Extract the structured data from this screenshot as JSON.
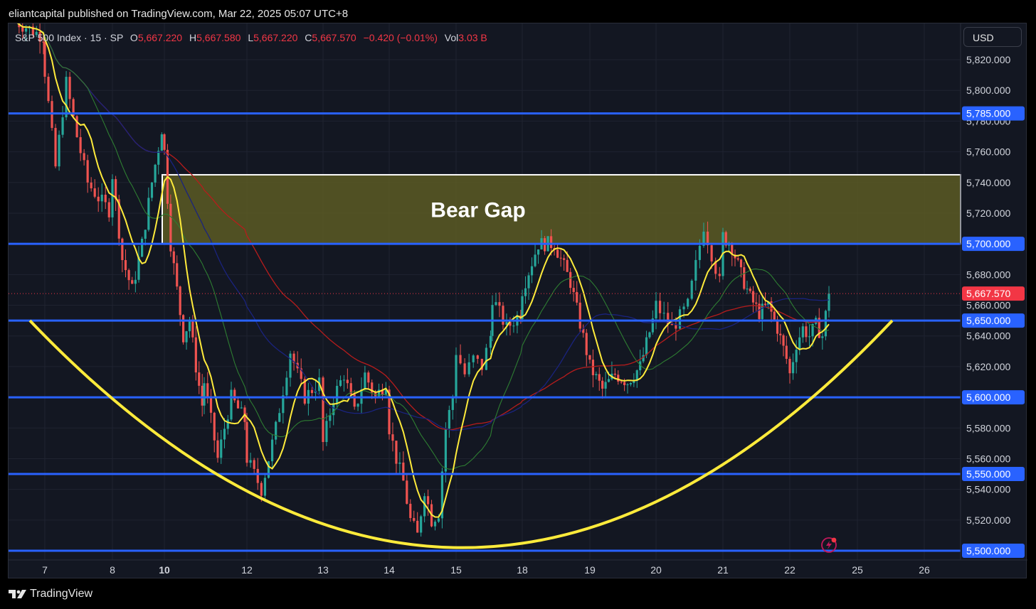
{
  "header": {
    "publisher": "eliantcapital published on TradingView.com, Mar 22, 2025 05:07 UTC+8"
  },
  "legend": {
    "symbol": "S&P 500 Index · 15 · SP",
    "open_label": "O",
    "open": "5,667.220",
    "high_label": "H",
    "high": "5,667.580",
    "low_label": "L",
    "low": "5,667.220",
    "close_label": "C",
    "close": "5,667.570",
    "change": "−0.420 (−0.01%)",
    "vol_label": "Vol",
    "vol": "3.03 B"
  },
  "currency_button": "USD",
  "footer": {
    "brand": "TradingView"
  },
  "colors": {
    "background": "#131722",
    "grid": "#1f2330",
    "up_candle": "#26a69a",
    "down_candle": "#ef5350",
    "level_line": "#2962ff",
    "level_label_bg": "#2962ff",
    "gap_fill": "#5c5a23",
    "gap_border": "#ffffff",
    "ma_fast": "#ffeb3b",
    "ma_mid": "#2e7d32",
    "ma_blue": "#1a237e",
    "ma_red": "#b71c1c",
    "price_marker": "#f23645",
    "curve": "#ffeb3b"
  },
  "chart_data": {
    "type": "candlestick",
    "title": "S&P 500 Index · 15 · SP",
    "currency": "USD",
    "ylim": [
      5500,
      5835
    ],
    "y_ticks": [
      5520,
      5540,
      5560,
      5580,
      5600,
      5620,
      5640,
      5660,
      5680,
      5700,
      5720,
      5740,
      5760,
      5780,
      5800,
      5820
    ],
    "x_ticks": [
      "7",
      "8",
      "10",
      "12",
      "13",
      "14",
      "15",
      "18",
      "19",
      "20",
      "21",
      "22",
      "25",
      "26"
    ],
    "last_price": 5667.57,
    "horizontal_levels": [
      5785,
      5700,
      5650,
      5600,
      5550,
      5500
    ],
    "bear_gap": {
      "label": "Bear Gap",
      "low": 5700,
      "high": 5745
    },
    "rounding_bottom": {
      "start_price": 5650,
      "bottom_price": 5502,
      "end_price": 5650,
      "start_date": "Mar 6",
      "bottom_date": "Mar 14",
      "end_date": "Mar 25"
    },
    "price_path": [
      [
        "Mar 6",
        5845
      ],
      [
        "Mar 6",
        5835
      ],
      [
        "Mar 7",
        5812
      ],
      [
        "Mar 7",
        5750
      ],
      [
        "Mar 7",
        5805
      ],
      [
        "Mar 7",
        5770
      ],
      [
        "Mar 7",
        5740
      ],
      [
        "Mar 7",
        5730
      ],
      [
        "Mar 7",
        5722
      ],
      [
        "Mar 8",
        5745
      ],
      [
        "Mar 8",
        5690
      ],
      [
        "Mar 8",
        5670
      ],
      [
        "Mar 8",
        5700
      ],
      [
        "Mar 8",
        5740
      ],
      [
        "Mar 8",
        5775
      ],
      [
        "Mar 10",
        5760
      ],
      [
        "Mar 10",
        5700
      ],
      [
        "Mar 10",
        5670
      ],
      [
        "Mar 10",
        5640
      ],
      [
        "Mar 10",
        5650
      ],
      [
        "Mar 10",
        5620
      ],
      [
        "Mar 10",
        5595
      ],
      [
        "Mar 11",
        5610
      ],
      [
        "Mar 11",
        5560
      ],
      [
        "Mar 11",
        5600
      ],
      [
        "Mar 11",
        5585
      ],
      [
        "Mar 12",
        5560
      ],
      [
        "Mar 12",
        5540
      ],
      [
        "Mar 12",
        5580
      ],
      [
        "Mar 12",
        5630
      ],
      [
        "Mar 12",
        5600
      ],
      [
        "Mar 12",
        5610
      ],
      [
        "Mar 13",
        5570
      ],
      [
        "Mar 13",
        5600
      ],
      [
        "Mar 13",
        5615
      ],
      [
        "Mar 13",
        5590
      ],
      [
        "Mar 13",
        5615
      ],
      [
        "Mar 13",
        5600
      ],
      [
        "Mar 13",
        5610
      ],
      [
        "Mar 14",
        5580
      ],
      [
        "Mar 14",
        5560
      ],
      [
        "Mar 14",
        5545
      ],
      [
        "Mar 14",
        5520
      ],
      [
        "Mar 14",
        5510
      ],
      [
        "Mar 14",
        5540
      ],
      [
        "Mar 14",
        5520
      ],
      [
        "Mar 14",
        5525
      ],
      [
        "Mar 14",
        5580
      ],
      [
        "Mar 14",
        5600
      ],
      [
        "Mar 15",
        5630
      ],
      [
        "Mar 15",
        5615
      ],
      [
        "Mar 15",
        5625
      ],
      [
        "Mar 15",
        5620
      ],
      [
        "Mar 15",
        5640
      ],
      [
        "Mar 17",
        5665
      ],
      [
        "Mar 17",
        5645
      ],
      [
        "Mar 17",
        5655
      ],
      [
        "Mar 18",
        5670
      ],
      [
        "Mar 18",
        5700
      ],
      [
        "Mar 18",
        5700
      ],
      [
        "Mar 18",
        5675
      ],
      [
        "Mar 18",
        5630
      ],
      [
        "Mar 19",
        5620
      ],
      [
        "Mar 19",
        5605
      ],
      [
        "Mar 19",
        5615
      ],
      [
        "Mar 19",
        5610
      ],
      [
        "Mar 19",
        5620
      ],
      [
        "Mar 19",
        5650
      ],
      [
        "Mar 20",
        5660
      ],
      [
        "Mar 20",
        5645
      ],
      [
        "Mar 20",
        5660
      ],
      [
        "Mar 20",
        5712
      ],
      [
        "Mar 20",
        5675
      ],
      [
        "Mar 21",
        5705
      ],
      [
        "Mar 21",
        5698
      ],
      [
        "Mar 21",
        5680
      ],
      [
        "Mar 21",
        5665
      ],
      [
        "Mar 21",
        5655
      ],
      [
        "Mar 21",
        5660
      ],
      [
        "Mar 21",
        5645
      ],
      [
        "Mar 21",
        5625
      ],
      [
        "Mar 22",
        5615
      ],
      [
        "Mar 22",
        5635
      ],
      [
        "Mar 22",
        5645
      ],
      [
        "Mar 22",
        5640
      ],
      [
        "Mar 22",
        5647
      ],
      [
        "Mar 22",
        5640
      ],
      [
        "Mar 22",
        5667.57
      ]
    ]
  }
}
